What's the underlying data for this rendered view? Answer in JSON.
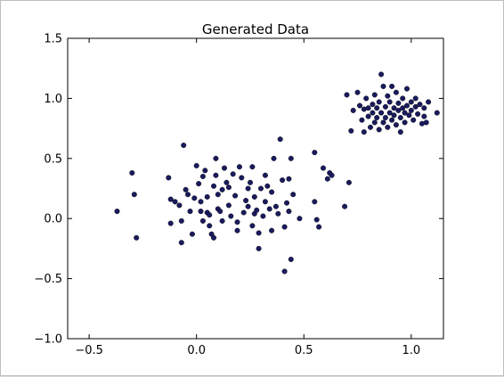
{
  "chart_data": {
    "type": "scatter",
    "title": "Generated Data",
    "xlabel": "",
    "ylabel": "",
    "xlim": [
      -0.6,
      1.15
    ],
    "ylim": [
      -1.0,
      1.5
    ],
    "xticks": [
      -0.5,
      0.0,
      0.5,
      1.0
    ],
    "xtick_labels": [
      "−0.5",
      "0.0",
      "0.5",
      "1.0"
    ],
    "yticks": [
      -1.0,
      -0.5,
      0.0,
      0.5,
      1.0,
      1.5
    ],
    "ytick_labels": [
      "−1.0",
      "−0.5",
      "0.0",
      "0.5",
      "1.0",
      "1.5"
    ],
    "grid": false,
    "legend": "none",
    "point_color": "#1a1a5e",
    "series": [
      {
        "name": "",
        "points": [
          [
            -0.37,
            0.06
          ],
          [
            -0.3,
            0.38
          ],
          [
            -0.29,
            0.2
          ],
          [
            -0.28,
            -0.16
          ],
          [
            -0.13,
            0.34
          ],
          [
            -0.12,
            0.16
          ],
          [
            -0.12,
            -0.04
          ],
          [
            -0.1,
            0.14
          ],
          [
            -0.08,
            0.11
          ],
          [
            -0.07,
            -0.02
          ],
          [
            -0.07,
            -0.2
          ],
          [
            -0.06,
            0.61
          ],
          [
            -0.05,
            0.24
          ],
          [
            -0.04,
            0.2
          ],
          [
            -0.03,
            0.06
          ],
          [
            -0.02,
            -0.13
          ],
          [
            -0.01,
            0.17
          ],
          [
            0.0,
            0.44
          ],
          [
            0.01,
            0.29
          ],
          [
            0.02,
            0.14
          ],
          [
            0.02,
            0.06
          ],
          [
            0.03,
            0.35
          ],
          [
            0.03,
            -0.02
          ],
          [
            0.04,
            0.4
          ],
          [
            0.05,
            0.18
          ],
          [
            0.05,
            0.05
          ],
          [
            0.06,
            0.03
          ],
          [
            0.06,
            -0.06
          ],
          [
            0.07,
            -0.13
          ],
          [
            0.08,
            0.27
          ],
          [
            0.08,
            -0.16
          ],
          [
            0.09,
            0.5
          ],
          [
            0.09,
            0.36
          ],
          [
            0.1,
            0.2
          ],
          [
            0.1,
            0.08
          ],
          [
            0.11,
            0.06
          ],
          [
            0.12,
            0.24
          ],
          [
            0.12,
            -0.02
          ],
          [
            0.13,
            0.42
          ],
          [
            0.14,
            0.3
          ],
          [
            0.15,
            0.26
          ],
          [
            0.15,
            0.11
          ],
          [
            0.16,
            0.02
          ],
          [
            0.17,
            0.37
          ],
          [
            0.18,
            0.19
          ],
          [
            0.19,
            -0.03
          ],
          [
            0.19,
            -0.1
          ],
          [
            0.2,
            0.43
          ],
          [
            0.21,
            0.34
          ],
          [
            0.22,
            0.05
          ],
          [
            0.23,
            0.15
          ],
          [
            0.24,
            0.25
          ],
          [
            0.24,
            0.1
          ],
          [
            0.25,
            0.3
          ],
          [
            0.26,
            0.43
          ],
          [
            0.26,
            -0.06
          ],
          [
            0.27,
            0.18
          ],
          [
            0.27,
            0.04
          ],
          [
            0.28,
            0.07
          ],
          [
            0.29,
            -0.12
          ],
          [
            0.29,
            -0.25
          ],
          [
            0.3,
            0.25
          ],
          [
            0.31,
            0.02
          ],
          [
            0.32,
            0.14
          ],
          [
            0.32,
            0.36
          ],
          [
            0.33,
            0.27
          ],
          [
            0.34,
            0.08
          ],
          [
            0.35,
            0.22
          ],
          [
            0.35,
            -0.1
          ],
          [
            0.36,
            0.5
          ],
          [
            0.37,
            0.1
          ],
          [
            0.38,
            0.04
          ],
          [
            0.39,
            0.66
          ],
          [
            0.4,
            0.32
          ],
          [
            0.41,
            -0.07
          ],
          [
            0.41,
            -0.44
          ],
          [
            0.42,
            0.13
          ],
          [
            0.43,
            0.33
          ],
          [
            0.43,
            0.06
          ],
          [
            0.44,
            0.5
          ],
          [
            0.44,
            -0.34
          ],
          [
            0.45,
            0.2
          ],
          [
            0.48,
            0.0
          ],
          [
            0.55,
            0.55
          ],
          [
            0.55,
            0.14
          ],
          [
            0.56,
            -0.01
          ],
          [
            0.57,
            -0.07
          ],
          [
            0.59,
            0.42
          ],
          [
            0.61,
            0.33
          ],
          [
            0.62,
            0.38
          ],
          [
            0.63,
            0.36
          ],
          [
            0.69,
            0.1
          ],
          [
            0.71,
            0.3
          ]
        ]
      },
      {
        "name": "",
        "points": [
          [
            0.7,
            1.03
          ],
          [
            0.72,
            0.73
          ],
          [
            0.73,
            0.9
          ],
          [
            0.75,
            1.05
          ],
          [
            0.76,
            0.94
          ],
          [
            0.77,
            0.82
          ],
          [
            0.78,
            0.91
          ],
          [
            0.78,
            0.72
          ],
          [
            0.79,
            1.0
          ],
          [
            0.8,
            0.92
          ],
          [
            0.8,
            0.85
          ],
          [
            0.81,
            0.76
          ],
          [
            0.82,
            0.95
          ],
          [
            0.82,
            0.88
          ],
          [
            0.83,
            0.8
          ],
          [
            0.83,
            1.03
          ],
          [
            0.84,
            0.92
          ],
          [
            0.84,
            0.84
          ],
          [
            0.85,
            0.97
          ],
          [
            0.85,
            0.74
          ],
          [
            0.86,
            1.2
          ],
          [
            0.86,
            0.88
          ],
          [
            0.87,
            1.1
          ],
          [
            0.87,
            0.8
          ],
          [
            0.88,
            0.93
          ],
          [
            0.88,
            0.84
          ],
          [
            0.89,
            1.02
          ],
          [
            0.89,
            0.76
          ],
          [
            0.9,
            0.97
          ],
          [
            0.9,
            0.88
          ],
          [
            0.91,
            1.1
          ],
          [
            0.91,
            0.82
          ],
          [
            0.92,
            0.92
          ],
          [
            0.92,
            0.86
          ],
          [
            0.93,
            1.05
          ],
          [
            0.93,
            0.78
          ],
          [
            0.94,
            0.96
          ],
          [
            0.94,
            0.9
          ],
          [
            0.95,
            0.72
          ],
          [
            0.95,
            0.84
          ],
          [
            0.96,
            1.0
          ],
          [
            0.96,
            0.92
          ],
          [
            0.97,
            0.88
          ],
          [
            0.97,
            0.8
          ],
          [
            0.98,
            1.08
          ],
          [
            0.98,
            0.94
          ],
          [
            0.99,
            0.86
          ],
          [
            1.0,
            0.97
          ],
          [
            1.0,
            0.9
          ],
          [
            1.01,
            0.82
          ],
          [
            1.02,
            0.93
          ],
          [
            1.02,
            1.0
          ],
          [
            1.03,
            0.87
          ],
          [
            1.04,
            0.95
          ],
          [
            1.05,
            0.79
          ],
          [
            1.06,
            0.92
          ],
          [
            1.06,
            0.85
          ],
          [
            1.07,
            0.8
          ],
          [
            1.08,
            0.97
          ],
          [
            1.12,
            0.88
          ]
        ]
      }
    ]
  }
}
